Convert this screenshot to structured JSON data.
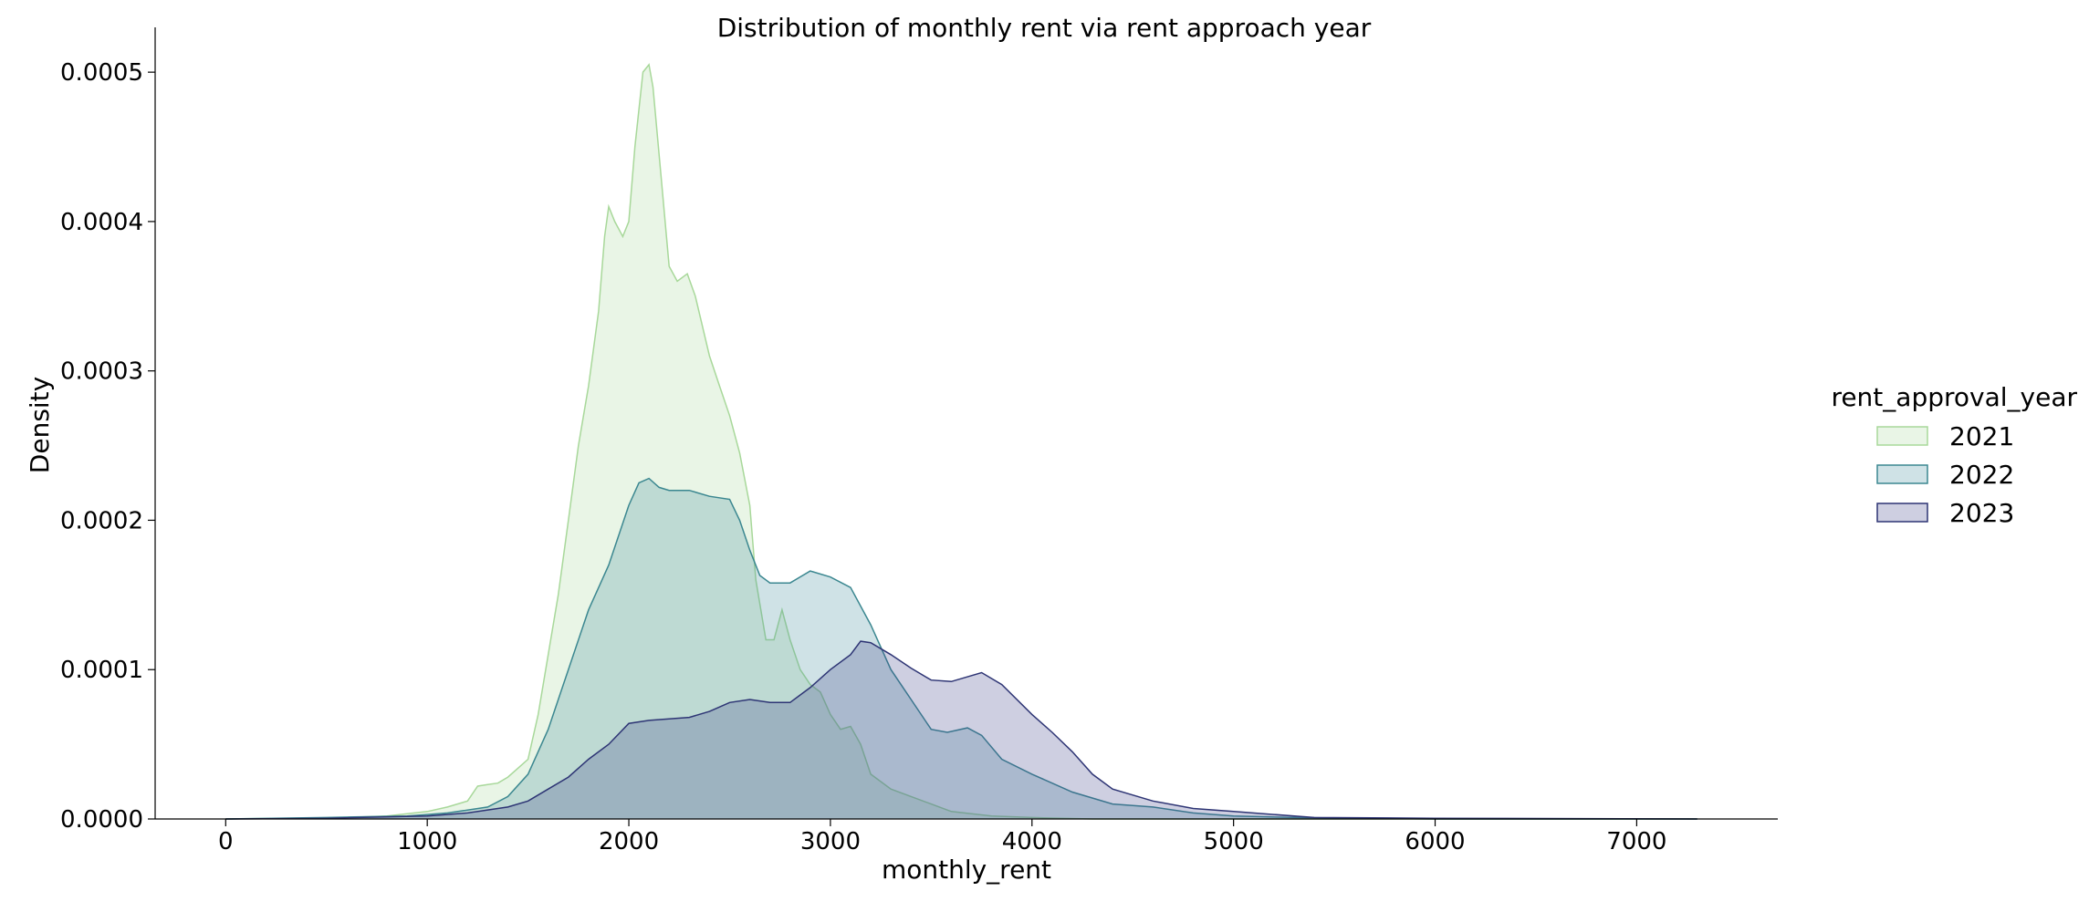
{
  "chart_data": {
    "type": "area",
    "title": "Distribution of monthly rent via rent approach year",
    "xlabel": "monthly_rent",
    "ylabel": "Density",
    "xlim": [
      -350,
      7700
    ],
    "ylim": [
      0,
      0.00053
    ],
    "xticks": [
      "0",
      "1000",
      "2000",
      "3000",
      "4000",
      "5000",
      "6000",
      "7000"
    ],
    "xtick_values": [
      0,
      1000,
      2000,
      3000,
      4000,
      5000,
      6000,
      7000
    ],
    "yticks": [
      "0.0000",
      "0.0001",
      "0.0002",
      "0.0003",
      "0.0004",
      "0.0005"
    ],
    "ytick_values": [
      0,
      0.0001,
      0.0002,
      0.0003,
      0.0004,
      0.0005
    ],
    "grid": false,
    "legend_title": "rent_approval_year",
    "legend_position": "right",
    "series": [
      {
        "name": "2021",
        "fill": "#a8d89a",
        "stroke": "#a8d89a",
        "points": [
          [
            0,
            0
          ],
          [
            300,
            5e-07
          ],
          [
            600,
            1e-06
          ],
          [
            800,
            2e-06
          ],
          [
            1000,
            5e-06
          ],
          [
            1100,
            8e-06
          ],
          [
            1200,
            1.2e-05
          ],
          [
            1250,
            2.2e-05
          ],
          [
            1300,
            2.3e-05
          ],
          [
            1350,
            2.4e-05
          ],
          [
            1400,
            2.8e-05
          ],
          [
            1450,
            3.4e-05
          ],
          [
            1500,
            4e-05
          ],
          [
            1550,
            7e-05
          ],
          [
            1600,
            0.00011
          ],
          [
            1650,
            0.00015
          ],
          [
            1700,
            0.0002
          ],
          [
            1750,
            0.00025
          ],
          [
            1800,
            0.00029
          ],
          [
            1850,
            0.00034
          ],
          [
            1880,
            0.00039
          ],
          [
            1900,
            0.00041
          ],
          [
            1930,
            0.0004
          ],
          [
            1970,
            0.00039
          ],
          [
            2000,
            0.0004
          ],
          [
            2030,
            0.00045
          ],
          [
            2070,
            0.0005
          ],
          [
            2100,
            0.000505
          ],
          [
            2120,
            0.00049
          ],
          [
            2160,
            0.00043
          ],
          [
            2200,
            0.00037
          ],
          [
            2240,
            0.00036
          ],
          [
            2290,
            0.000365
          ],
          [
            2330,
            0.00035
          ],
          [
            2400,
            0.00031
          ],
          [
            2450,
            0.00029
          ],
          [
            2500,
            0.00027
          ],
          [
            2550,
            0.000245
          ],
          [
            2600,
            0.00021
          ],
          [
            2630,
            0.00016
          ],
          [
            2680,
            0.00012
          ],
          [
            2720,
            0.00012
          ],
          [
            2760,
            0.00014
          ],
          [
            2800,
            0.00012
          ],
          [
            2850,
            0.0001
          ],
          [
            2900,
            9e-05
          ],
          [
            2950,
            8.5e-05
          ],
          [
            3000,
            7e-05
          ],
          [
            3050,
            6e-05
          ],
          [
            3100,
            6.2e-05
          ],
          [
            3150,
            5e-05
          ],
          [
            3200,
            3e-05
          ],
          [
            3300,
            2e-05
          ],
          [
            3400,
            1.5e-05
          ],
          [
            3500,
            1e-05
          ],
          [
            3600,
            5e-06
          ],
          [
            3800,
            2e-06
          ],
          [
            4000,
            1e-06
          ],
          [
            4300,
            0
          ],
          [
            7300,
            0
          ]
        ]
      },
      {
        "name": "2022",
        "fill": "#408b9a",
        "stroke": "#3b8790",
        "points": [
          [
            0,
            0
          ],
          [
            500,
            1e-06
          ],
          [
            700,
            1.5e-06
          ],
          [
            900,
            2e-06
          ],
          [
            1000,
            3e-06
          ],
          [
            1100,
            4e-06
          ],
          [
            1200,
            6e-06
          ],
          [
            1300,
            8e-06
          ],
          [
            1400,
            1.5e-05
          ],
          [
            1500,
            3e-05
          ],
          [
            1600,
            6e-05
          ],
          [
            1700,
            0.0001
          ],
          [
            1800,
            0.00014
          ],
          [
            1900,
            0.00017
          ],
          [
            2000,
            0.00021
          ],
          [
            2050,
            0.000225
          ],
          [
            2100,
            0.000228
          ],
          [
            2150,
            0.000222
          ],
          [
            2200,
            0.00022
          ],
          [
            2300,
            0.00022
          ],
          [
            2400,
            0.000216
          ],
          [
            2500,
            0.000214
          ],
          [
            2550,
            0.0002
          ],
          [
            2600,
            0.00018
          ],
          [
            2650,
            0.000163
          ],
          [
            2700,
            0.000158
          ],
          [
            2800,
            0.000158
          ],
          [
            2900,
            0.000166
          ],
          [
            3000,
            0.000162
          ],
          [
            3100,
            0.000155
          ],
          [
            3200,
            0.00013
          ],
          [
            3300,
            0.0001
          ],
          [
            3400,
            8e-05
          ],
          [
            3500,
            6e-05
          ],
          [
            3580,
            5.8e-05
          ],
          [
            3680,
            6.1e-05
          ],
          [
            3750,
            5.6e-05
          ],
          [
            3850,
            4e-05
          ],
          [
            4000,
            3e-05
          ],
          [
            4200,
            1.8e-05
          ],
          [
            4400,
            1e-05
          ],
          [
            4600,
            8e-06
          ],
          [
            4800,
            4e-06
          ],
          [
            5000,
            2e-06
          ],
          [
            5300,
            1e-06
          ],
          [
            6000,
            0
          ],
          [
            7300,
            0
          ]
        ]
      },
      {
        "name": "2023",
        "fill": "#3a3f86",
        "stroke": "#2d3474",
        "points": [
          [
            0,
            0
          ],
          [
            500,
            5e-07
          ],
          [
            1000,
            2e-06
          ],
          [
            1200,
            4e-06
          ],
          [
            1400,
            8e-06
          ],
          [
            1500,
            1.2e-05
          ],
          [
            1600,
            2e-05
          ],
          [
            1700,
            2.8e-05
          ],
          [
            1800,
            4e-05
          ],
          [
            1900,
            5e-05
          ],
          [
            2000,
            6.4e-05
          ],
          [
            2100,
            6.6e-05
          ],
          [
            2200,
            6.7e-05
          ],
          [
            2300,
            6.8e-05
          ],
          [
            2400,
            7.2e-05
          ],
          [
            2500,
            7.8e-05
          ],
          [
            2600,
            8e-05
          ],
          [
            2700,
            7.8e-05
          ],
          [
            2800,
            7.8e-05
          ],
          [
            2900,
            8.8e-05
          ],
          [
            3000,
            0.0001
          ],
          [
            3100,
            0.00011
          ],
          [
            3150,
            0.000119
          ],
          [
            3200,
            0.000118
          ],
          [
            3300,
            0.00011
          ],
          [
            3400,
            0.000101
          ],
          [
            3500,
            9.3e-05
          ],
          [
            3600,
            9.2e-05
          ],
          [
            3700,
            9.6e-05
          ],
          [
            3750,
            9.8e-05
          ],
          [
            3850,
            9e-05
          ],
          [
            4000,
            7e-05
          ],
          [
            4100,
            5.8e-05
          ],
          [
            4200,
            4.5e-05
          ],
          [
            4300,
            3e-05
          ],
          [
            4400,
            2e-05
          ],
          [
            4600,
            1.2e-05
          ],
          [
            4800,
            7e-06
          ],
          [
            5000,
            5e-06
          ],
          [
            5200,
            3e-06
          ],
          [
            5400,
            1e-06
          ],
          [
            6000,
            5e-07
          ],
          [
            7300,
            0
          ]
        ]
      }
    ]
  }
}
